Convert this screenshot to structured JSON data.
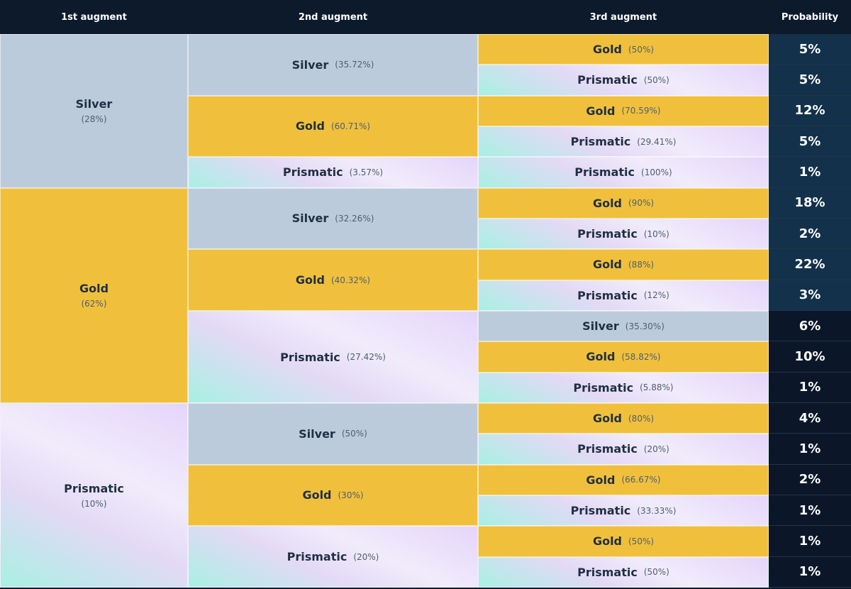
{
  "headers": {
    "first": "1st augment",
    "second": "2nd augment",
    "third": "3rd augment",
    "probability": "Probability"
  },
  "colors": {
    "silver": "#bccbdb",
    "gold": "#f0c03c",
    "prismatic": "#e6dcf8",
    "header_bg": "#0c1a2c",
    "prob_bg_top": "#13314a",
    "prob_bg_bottom": "#0b1729"
  },
  "tree": [
    {
      "name": "Silver",
      "pct": "(28%)",
      "children": [
        {
          "name": "Silver",
          "pct": "(35.72%)",
          "children": [
            {
              "name": "Gold",
              "pct": "(50%)",
              "prob": "5%"
            },
            {
              "name": "Prismatic",
              "pct": "(50%)",
              "prob": "5%"
            }
          ]
        },
        {
          "name": "Gold",
          "pct": "(60.71%)",
          "children": [
            {
              "name": "Gold",
              "pct": "(70.59%)",
              "prob": "12%"
            },
            {
              "name": "Prismatic",
              "pct": "(29.41%)",
              "prob": "5%"
            }
          ]
        },
        {
          "name": "Prismatic",
          "pct": "(3.57%)",
          "children": [
            {
              "name": "Prismatic",
              "pct": "(100%)",
              "prob": "1%"
            }
          ]
        }
      ]
    },
    {
      "name": "Gold",
      "pct": "(62%)",
      "children": [
        {
          "name": "Silver",
          "pct": "(32.26%)",
          "children": [
            {
              "name": "Gold",
              "pct": "(90%)",
              "prob": "18%"
            },
            {
              "name": "Prismatic",
              "pct": "(10%)",
              "prob": "2%"
            }
          ]
        },
        {
          "name": "Gold",
          "pct": "(40.32%)",
          "children": [
            {
              "name": "Gold",
              "pct": "(88%)",
              "prob": "22%"
            },
            {
              "name": "Prismatic",
              "pct": "(12%)",
              "prob": "3%"
            }
          ]
        },
        {
          "name": "Prismatic",
          "pct": "(27.42%)",
          "children": [
            {
              "name": "Silver",
              "pct": "(35.30%)",
              "prob": "6%"
            },
            {
              "name": "Gold",
              "pct": "(58.82%)",
              "prob": "10%"
            },
            {
              "name": "Prismatic",
              "pct": "(5.88%)",
              "prob": "1%"
            }
          ]
        }
      ]
    },
    {
      "name": "Prismatic",
      "pct": "(10%)",
      "children": [
        {
          "name": "Silver",
          "pct": "(50%)",
          "children": [
            {
              "name": "Gold",
              "pct": "(80%)",
              "prob": "4%"
            },
            {
              "name": "Prismatic",
              "pct": "(20%)",
              "prob": "1%"
            }
          ]
        },
        {
          "name": "Gold",
          "pct": "(30%)",
          "children": [
            {
              "name": "Gold",
              "pct": "(66.67%)",
              "prob": "2%"
            },
            {
              "name": "Prismatic",
              "pct": "(33.33%)",
              "prob": "1%"
            }
          ]
        },
        {
          "name": "Prismatic",
          "pct": "(20%)",
          "children": [
            {
              "name": "Gold",
              "pct": "(50%)",
              "prob": "1%"
            },
            {
              "name": "Prismatic",
              "pct": "(50%)",
              "prob": "1%"
            }
          ]
        }
      ]
    }
  ]
}
